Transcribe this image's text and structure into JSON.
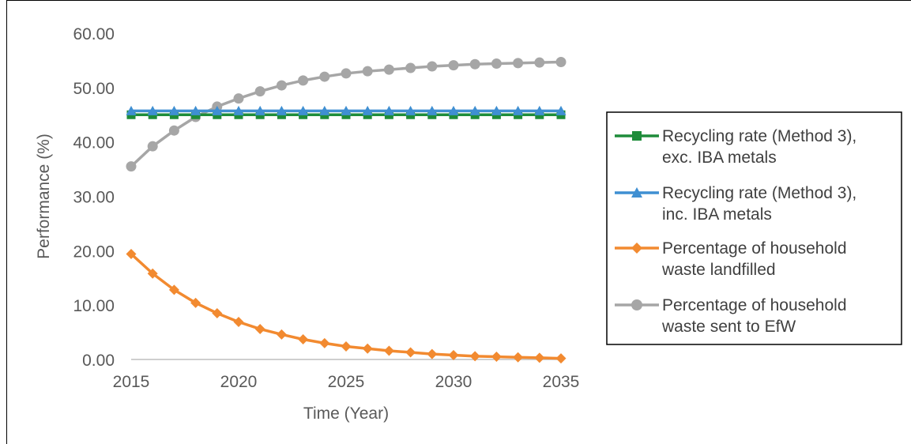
{
  "chart_data": {
    "type": "line",
    "xlabel": "Time (Year)",
    "ylabel": "Performance (%)",
    "xlim": [
      2015,
      2035
    ],
    "ylim": [
      0,
      60
    ],
    "x_ticks": [
      "2015",
      "2020",
      "2025",
      "2030",
      "2035"
    ],
    "y_ticks": [
      "0.00",
      "10.00",
      "20.00",
      "30.00",
      "40.00",
      "50.00",
      "60.00"
    ],
    "grid": false,
    "legend_position": "right",
    "x": [
      2015,
      2016,
      2017,
      2018,
      2019,
      2020,
      2021,
      2022,
      2023,
      2024,
      2025,
      2026,
      2027,
      2028,
      2029,
      2030,
      2031,
      2032,
      2033,
      2034,
      2035
    ],
    "series": [
      {
        "name_lines": [
          "Recycling rate (Method 3),",
          "exc. IBA metals"
        ],
        "color": "#1e8c3a",
        "marker": "square",
        "values": [
          45,
          45,
          45,
          45,
          45,
          45,
          45,
          45,
          45,
          45,
          45,
          45,
          45,
          45,
          45,
          45,
          45,
          45,
          45,
          45,
          45
        ]
      },
      {
        "name_lines": [
          "Recycling rate (Method 3),",
          "inc. IBA metals"
        ],
        "color": "#3f8fd2",
        "marker": "triangle",
        "values": [
          45.7,
          45.7,
          45.7,
          45.7,
          45.7,
          45.7,
          45.7,
          45.7,
          45.7,
          45.7,
          45.7,
          45.7,
          45.7,
          45.7,
          45.7,
          45.7,
          45.7,
          45.7,
          45.7,
          45.7,
          45.7
        ]
      },
      {
        "name_lines": [
          "Percentage of household",
          "waste landfilled"
        ],
        "color": "#f28a30",
        "marker": "diamond",
        "values": [
          19.4,
          15.8,
          12.8,
          10.4,
          8.5,
          6.9,
          5.6,
          4.6,
          3.7,
          3.0,
          2.4,
          2.0,
          1.6,
          1.3,
          1.0,
          0.8,
          0.6,
          0.5,
          0.4,
          0.3,
          0.2
        ]
      },
      {
        "name_lines": [
          "Percentage of household",
          "waste sent to EfW"
        ],
        "color": "#a6a6a6",
        "marker": "circle",
        "values": [
          35.5,
          39.2,
          42.1,
          44.6,
          46.5,
          48.0,
          49.3,
          50.4,
          51.3,
          52.0,
          52.6,
          53.0,
          53.3,
          53.6,
          53.9,
          54.1,
          54.3,
          54.4,
          54.5,
          54.6,
          54.7
        ]
      }
    ]
  }
}
